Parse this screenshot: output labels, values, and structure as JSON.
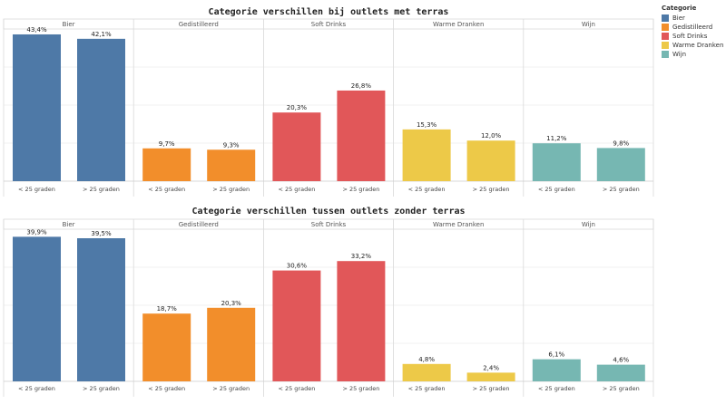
{
  "legend": {
    "title": "Categorie",
    "items": [
      {
        "label": "Bier",
        "color": "#4e79a7"
      },
      {
        "label": "Gedistilleerd",
        "color": "#f28e2b"
      },
      {
        "label": "Soft Drinks",
        "color": "#e15759"
      },
      {
        "label": "Warme Dranken",
        "color": "#edc948"
      },
      {
        "label": "Wijn",
        "color": "#76b7b2"
      }
    ]
  },
  "chart_data": [
    {
      "type": "bar",
      "title": "Categorie verschillen bij outlets met terras",
      "panels": [
        "Bier",
        "Gedistilleerd",
        "Soft Drinks",
        "Warme Dranken",
        "Wijn"
      ],
      "categories": [
        "< 25 graden",
        "> 25 graden"
      ],
      "ylim": [
        0,
        45
      ],
      "series": [
        {
          "name": "Bier",
          "color": "#4e79a7",
          "values": [
            43.4,
            42.1
          ],
          "labels": [
            "43,4%",
            "42,1%"
          ]
        },
        {
          "name": "Gedistilleerd",
          "color": "#f28e2b",
          "values": [
            9.7,
            9.3
          ],
          "labels": [
            "9,7%",
            "9,3%"
          ]
        },
        {
          "name": "Soft Drinks",
          "color": "#e15759",
          "values": [
            20.3,
            26.8
          ],
          "labels": [
            "20,3%",
            "26,8%"
          ]
        },
        {
          "name": "Warme Dranken",
          "color": "#edc948",
          "values": [
            15.3,
            12.0
          ],
          "labels": [
            "15,3%",
            "12,0%"
          ]
        },
        {
          "name": "Wijn",
          "color": "#76b7b2",
          "values": [
            11.2,
            9.8
          ],
          "labels": [
            "11,2%",
            "9,8%"
          ]
        }
      ]
    },
    {
      "type": "bar",
      "title": "Categorie verschillen tussen outlets zonder terras",
      "panels": [
        "Bier",
        "Gedistilleerd",
        "Soft Drinks",
        "Warme Dranken",
        "Wijn"
      ],
      "categories": [
        "< 25 graden",
        "> 25 graden"
      ],
      "ylim": [
        0,
        42
      ],
      "series": [
        {
          "name": "Bier",
          "color": "#4e79a7",
          "values": [
            39.9,
            39.5
          ],
          "labels": [
            "39,9%",
            "39,5%"
          ]
        },
        {
          "name": "Gedistilleerd",
          "color": "#f28e2b",
          "values": [
            18.7,
            20.3
          ],
          "labels": [
            "18,7%",
            "20,3%"
          ]
        },
        {
          "name": "Soft Drinks",
          "color": "#e15759",
          "values": [
            30.6,
            33.2
          ],
          "labels": [
            "30,6%",
            "33,2%"
          ]
        },
        {
          "name": "Warme Dranken",
          "color": "#edc948",
          "values": [
            4.8,
            2.4
          ],
          "labels": [
            "4,8%",
            "2,4%"
          ]
        },
        {
          "name": "Wijn",
          "color": "#76b7b2",
          "values": [
            6.1,
            4.6
          ],
          "labels": [
            "6,1%",
            "4,6%"
          ]
        }
      ]
    }
  ]
}
